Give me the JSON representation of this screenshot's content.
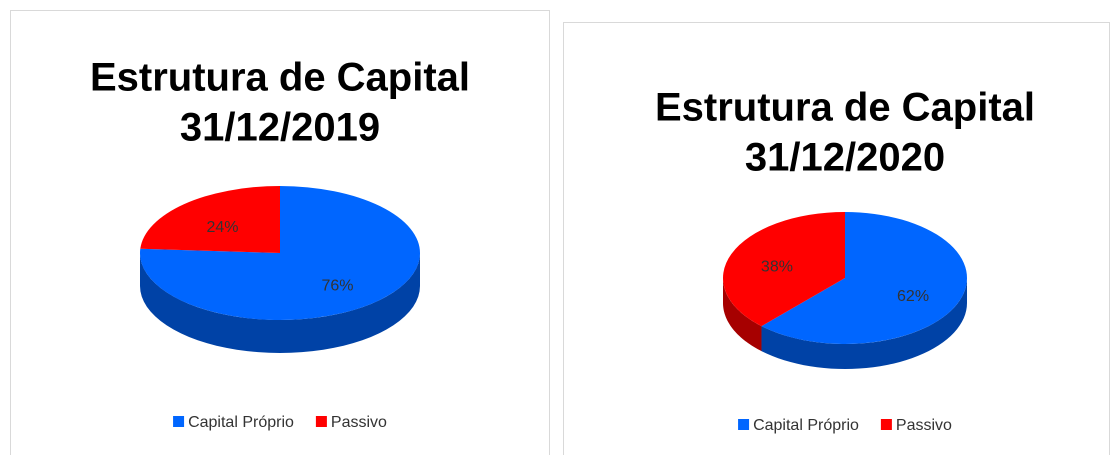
{
  "chart_data": [
    {
      "type": "pie",
      "title": [
        "Estrutura de Capital",
        "31/12/2019"
      ],
      "categories": [
        "Capital Próprio",
        "Passivo"
      ],
      "values": [
        76,
        24
      ],
      "value_labels": [
        "76%",
        "24%"
      ],
      "colors": [
        "#0066ff",
        "#ff0000"
      ]
    },
    {
      "type": "pie",
      "title": [
        "Estrutura de Capital",
        "31/12/2020"
      ],
      "categories": [
        "Capital Próprio",
        "Passivo"
      ],
      "values": [
        62,
        38
      ],
      "value_labels": [
        "62%",
        "38%"
      ],
      "colors": [
        "#0066ff",
        "#ff0000"
      ]
    }
  ]
}
